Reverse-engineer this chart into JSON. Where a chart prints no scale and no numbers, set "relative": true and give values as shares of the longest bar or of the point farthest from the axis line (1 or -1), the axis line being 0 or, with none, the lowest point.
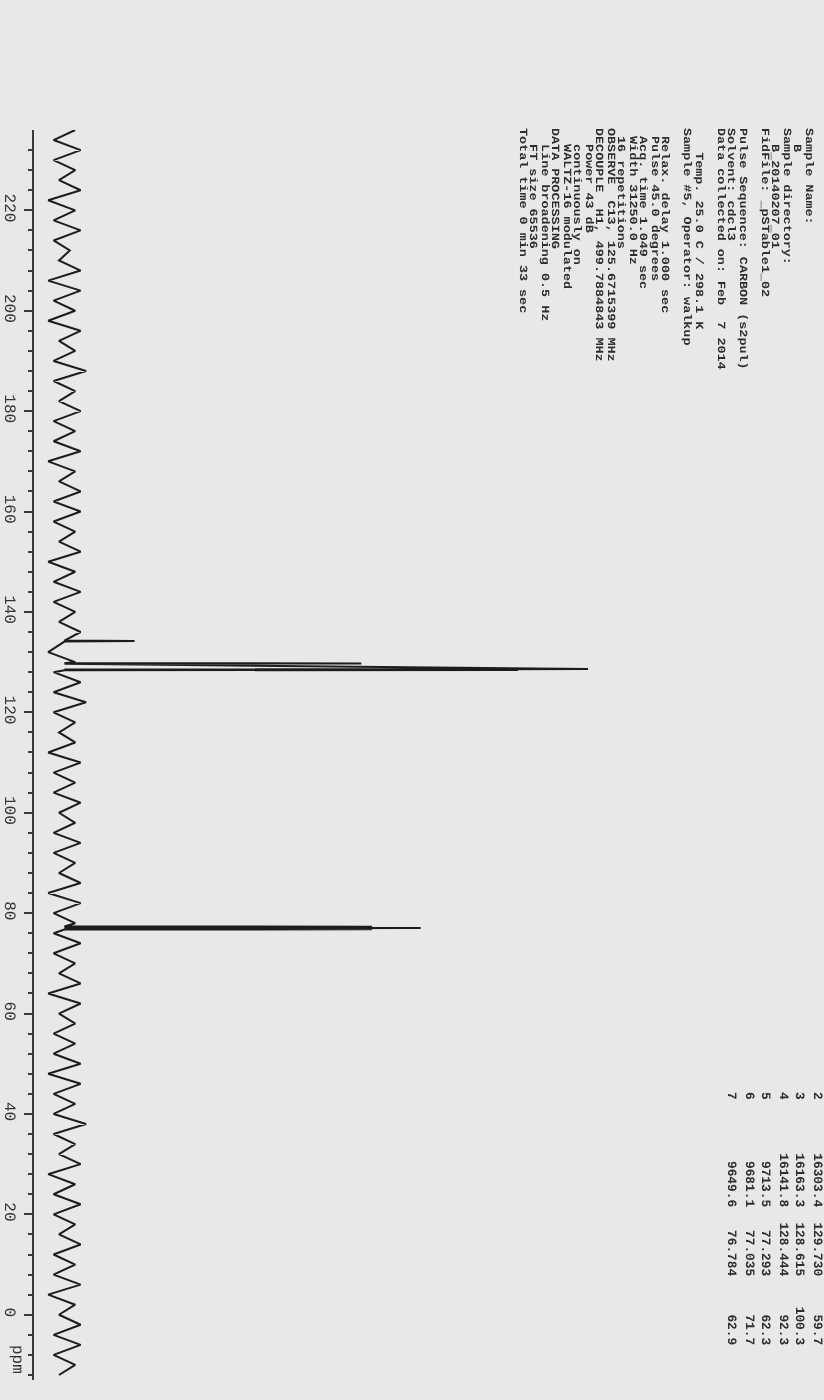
{
  "chart_data": {
    "type": "line",
    "orientation": "horizontal",
    "relative": true,
    "color": "#1c1c1c",
    "ylabel": "ppm",
    "ylim": [
      -13,
      236
    ],
    "yticks": [
      {
        "value": 232,
        "label": null
      },
      {
        "value": 228,
        "label": null
      },
      {
        "value": 224,
        "label": null
      },
      220,
      {
        "value": 216,
        "label": null
      },
      {
        "value": 212,
        "label": null
      },
      {
        "value": 208,
        "label": null
      },
      {
        "value": 204,
        "label": null
      },
      200,
      {
        "value": 196,
        "label": null
      },
      {
        "value": 192,
        "label": null
      },
      {
        "value": 188,
        "label": null
      },
      {
        "value": 184,
        "label": null
      },
      180,
      {
        "value": 176,
        "label": null
      },
      {
        "value": 172,
        "label": null
      },
      {
        "value": 168,
        "label": null
      },
      {
        "value": 164,
        "label": null
      },
      160,
      {
        "value": 156,
        "label": null
      },
      {
        "value": 152,
        "label": null
      },
      {
        "value": 148,
        "label": null
      },
      {
        "value": 144,
        "label": null
      },
      140,
      {
        "value": 136,
        "label": null
      },
      {
        "value": 132,
        "label": null
      },
      {
        "value": 128,
        "label": null
      },
      {
        "value": 124,
        "label": null
      },
      120,
      {
        "value": 116,
        "label": null
      },
      {
        "value": 112,
        "label": null
      },
      {
        "value": 108,
        "label": null
      },
      {
        "value": 104,
        "label": null
      },
      100,
      {
        "value": 96,
        "label": null
      },
      {
        "value": 92,
        "label": null
      },
      {
        "value": 88,
        "label": null
      },
      {
        "value": 84,
        "label": null
      },
      80,
      {
        "value": 76,
        "label": null
      },
      {
        "value": 72,
        "label": null
      },
      {
        "value": 68,
        "label": null
      },
      {
        "value": 64,
        "label": null
      },
      60,
      {
        "value": 56,
        "label": null
      },
      {
        "value": 52,
        "label": null
      },
      {
        "value": 48,
        "label": null
      },
      {
        "value": 44,
        "label": null
      },
      40,
      {
        "value": 36,
        "label": null
      },
      {
        "value": 32,
        "label": null
      },
      {
        "value": 28,
        "label": null
      },
      {
        "value": 24,
        "label": null
      },
      20,
      {
        "value": 16,
        "label": null
      },
      {
        "value": 12,
        "label": null
      },
      {
        "value": 8,
        "label": null
      },
      {
        "value": 4,
        "label": null
      },
      0,
      {
        "value": -4,
        "label": null
      },
      {
        "value": -8,
        "label": null
      },
      {
        "value": -12,
        "label": null
      }
    ],
    "x": [
      236,
      234,
      232,
      230,
      228,
      226,
      224,
      222,
      220,
      218,
      216,
      214,
      212,
      210,
      208,
      206,
      204,
      202,
      200,
      198,
      196,
      194,
      192,
      190,
      188,
      186,
      184,
      182,
      180,
      178,
      176,
      174,
      172,
      170,
      168,
      166,
      164,
      162,
      160,
      158,
      156,
      154,
      152,
      150,
      148,
      146,
      144,
      142,
      140,
      138,
      136,
      134.3,
      134.2,
      134.1,
      132,
      130,
      129.8,
      129.73,
      129.68,
      128.615,
      128.53,
      128.444,
      128.38,
      128,
      126,
      124,
      122,
      120,
      118,
      116,
      114,
      112,
      110,
      108,
      106,
      104,
      102,
      100,
      98,
      96,
      94,
      92,
      90,
      88,
      86,
      84,
      82,
      80,
      78,
      77.35,
      77.293,
      77.16,
      77.035,
      76.9,
      76.784,
      76.72,
      76,
      74,
      72,
      70,
      68,
      66,
      64,
      62,
      60,
      58,
      56,
      54,
      52,
      50,
      48,
      46,
      44,
      42,
      40,
      38,
      36,
      34,
      32,
      30,
      28,
      26,
      24,
      22,
      20,
      18,
      16,
      14,
      12,
      10,
      8,
      6,
      4,
      2,
      0,
      -2,
      -4,
      -6,
      -8,
      -10,
      -12
    ],
    "values": [
      0.05,
      0.01,
      0.06,
      0.01,
      0.05,
      0.02,
      0.06,
      0.0,
      0.05,
      0.01,
      0.06,
      0.01,
      0.04,
      0.02,
      0.06,
      0.0,
      0.06,
      0.01,
      0.05,
      0.0,
      0.06,
      0.02,
      0.05,
      0.01,
      0.07,
      0.01,
      0.05,
      0.02,
      0.06,
      0.01,
      0.05,
      0.01,
      0.06,
      0.0,
      0.05,
      0.02,
      0.06,
      0.01,
      0.06,
      0.01,
      0.05,
      0.02,
      0.06,
      0.0,
      0.05,
      0.01,
      0.06,
      0.01,
      0.05,
      0.02,
      0.06,
      0.03,
      0.16,
      0.03,
      0.0,
      0.05,
      0.03,
      0.58,
      0.03,
      1,
      0.03,
      0.87,
      0.03,
      0.01,
      0.06,
      0.01,
      0.07,
      0.01,
      0.05,
      0.02,
      0.05,
      0.0,
      0.06,
      0.01,
      0.05,
      0.01,
      0.06,
      0.02,
      0.05,
      0.01,
      0.06,
      0.01,
      0.05,
      0.02,
      0.06,
      0.0,
      0.06,
      0.01,
      0.05,
      0.03,
      0.6,
      0.03,
      0.69,
      0.03,
      0.6,
      0.03,
      0.01,
      0.06,
      0.01,
      0.05,
      0.02,
      0.06,
      0.0,
      0.06,
      0.02,
      0.05,
      0.01,
      0.05,
      0.01,
      0.06,
      0.0,
      0.06,
      0.01,
      0.05,
      0.01,
      0.07,
      0.01,
      0.05,
      0.02,
      0.06,
      0.0,
      0.05,
      0.01,
      0.06,
      0.01,
      0.05,
      0.02,
      0.06,
      0.01,
      0.05,
      0.01,
      0.06,
      0.0,
      0.05,
      0.02,
      0.06,
      0.01,
      0.06,
      0.01,
      0.05,
      0.02
    ],
    "annotations": [
      "Sample Name:\n  B\nSample directory:\n  B_20140207_01\nFidFile: _pSTable1_02\n\nPulse Sequence: CARBON (s2pul)\nSolvent: cdcl3\nData collected on: Feb  7 2014\n\n   Temp. 25.0 C / 298.1 K\nSample #5, Operator: walkup\n\n Relax. delay 1.000 sec\n Pulse 45.0 degrees\n Acq. time 1.049 sec\n Width 31250.0 Hz\n 16 repetitions\nOBSERVE  C13, 125.6715399 MHz\nDECOUPLE  H1, 499.7884843 MHz\n  Power 43 dB\n  continuously on\n  WALTZ-16 modulated\nDATA PROCESSING\n  Line broadening 0.5 Hz\n  FT size 65536\nTotal time 0 min 33 sec",
      "2       16303.4  129.730     59.7\n3       16163.3  128.615    100.3\n4       16141.8  128.444     92.3\n5        9713.5   77.293     62.3\n6        9681.1   77.035     71.7\n7        9649.6   76.784     62.9"
    ]
  }
}
